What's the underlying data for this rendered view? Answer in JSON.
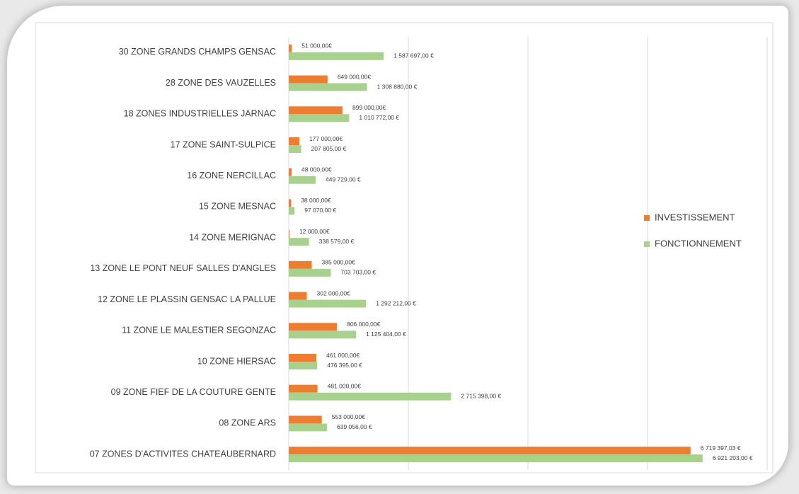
{
  "chart_data": {
    "type": "bar",
    "orientation": "horizontal",
    "categories": [
      "30  ZONE GRANDS CHAMPS GENSAC",
      "28  ZONE DES VAUZELLES",
      "18  ZONES INDUSTRIELLES JARNAC",
      "17  ZONE SAINT-SULPICE",
      "16  ZONE NERCILLAC",
      "15  ZONE MESNAC",
      "14  ZONE MERIGNAC",
      "13  ZONE LE PONT NEUF SALLES D'ANGLES",
      "12  ZONE LE PLASSIN GENSAC LA PALLUE",
      "11  ZONE LE MALESTIER SEGONZAC",
      "10  ZONE HIERSAC",
      "09  ZONE FIEF DE LA COUTURE GENTE",
      "08  ZONE ARS",
      "07  ZONES D'ACTIVITES CHATEAUBERNARD"
    ],
    "series": [
      {
        "name": "INVESTISSEMENT",
        "color": "#ed7d31",
        "values": [
          51000,
          649000,
          899000,
          177000,
          48000,
          38000,
          12000,
          385000,
          302000,
          806000,
          461000,
          481000,
          553000,
          6719397.03
        ],
        "value_labels": [
          "51 000,00€",
          "649 000,00€",
          "899 000,00€",
          "177 000,00€",
          "48 000,00€",
          "38 000,00€",
          "12 000,00€",
          "385 000,00€",
          "302 000,00€",
          "806 000,00€",
          "461 000,00€",
          "481 000,00€",
          "553 000,00€",
          "6 719 397,03 €"
        ]
      },
      {
        "name": "FONCTIONNEMENT",
        "color": "#a9d18e",
        "values": [
          1587697,
          1308880,
          1010772,
          207805,
          449729,
          97070,
          338579,
          703703,
          1292212,
          1125404,
          476395,
          2715398,
          639056,
          6921203
        ],
        "value_labels": [
          "1 587 697,00 €",
          "1 308 880,00 €",
          "1 010 772,00 €",
          "207 805,00 €",
          "449 729,00 €",
          "97 070,00 €",
          "338 579,00 €",
          "703 703,00 €",
          "1 292 212,00 €",
          "1 125 404,00 €",
          "476 395,00 €",
          "2 715 398,00 €",
          "639 056,00 €",
          "6 921 203,00 €"
        ]
      }
    ],
    "xlim": [
      0,
      8000000
    ],
    "xticks": [
      0,
      2000000,
      4000000,
      6000000,
      8000000
    ],
    "grid": true,
    "legend": "right"
  }
}
